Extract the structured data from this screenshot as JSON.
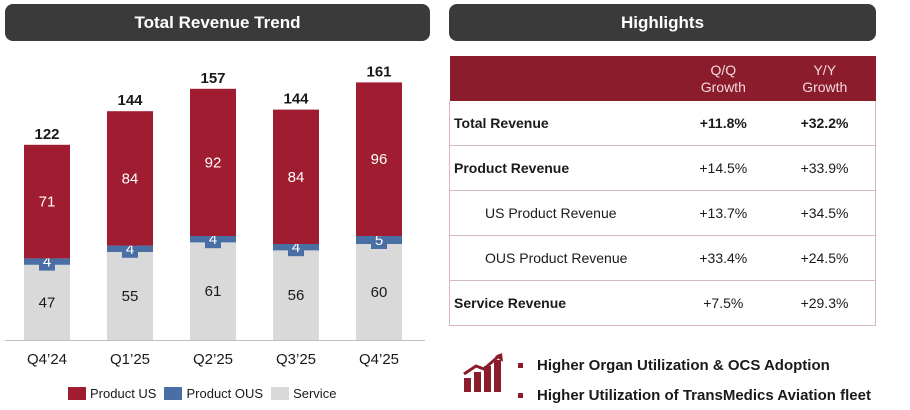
{
  "left_panel": {
    "title": "Total Revenue Trend"
  },
  "right_panel": {
    "title": "Highlights"
  },
  "chart_data": {
    "type": "bar",
    "stacked": true,
    "title": "Total Revenue Trend",
    "categories": [
      "Q4’24",
      "Q1’25",
      "Q2’25",
      "Q3’25",
      "Q4’25"
    ],
    "series": [
      {
        "name": "Service",
        "values": [
          47,
          55,
          61,
          56,
          60
        ],
        "color": "#d9d9d9"
      },
      {
        "name": "Product OUS",
        "values": [
          4,
          4,
          4,
          4,
          5
        ],
        "color": "#4a6fa5"
      },
      {
        "name": "Product US",
        "values": [
          71,
          84,
          92,
          84,
          96
        ],
        "color": "#a01c30"
      }
    ],
    "totals": [
      122,
      144,
      157,
      144,
      161
    ],
    "legend": [
      "Product US",
      "Product OUS",
      "Service"
    ],
    "legend_position": "bottom",
    "grid": false
  },
  "highlights": {
    "headers": [
      "",
      "Q/Q\nGrowth",
      "Y/Y\nGrowth"
    ],
    "header_qq": [
      "Q/Q",
      "Growth"
    ],
    "header_yy": [
      "Y/Y",
      "Growth"
    ],
    "rows": [
      {
        "label": "Total Revenue",
        "qq": "+11.8%",
        "yy": "+32.2%",
        "bold": true,
        "indent": false
      },
      {
        "label": "Product Revenue",
        "qq": "+14.5%",
        "yy": "+33.9%",
        "bold": false,
        "label_bold": true,
        "indent": false
      },
      {
        "label": "US Product Revenue",
        "qq": "+13.7%",
        "yy": "+34.5%",
        "bold": false,
        "indent": true
      },
      {
        "label": "OUS Product Revenue",
        "qq": "+33.4%",
        "yy": "+24.5%",
        "bold": false,
        "indent": true
      },
      {
        "label": "Service Revenue",
        "qq": "+7.5%",
        "yy": "+29.3%",
        "bold": false,
        "label_bold": true,
        "indent": false
      }
    ]
  },
  "bullets": [
    "Higher Organ Utilization & OCS Adoption",
    "Higher Utilization of TransMedics Aviation fleet"
  ],
  "icons": {
    "growth": "growth-chart-icon"
  }
}
